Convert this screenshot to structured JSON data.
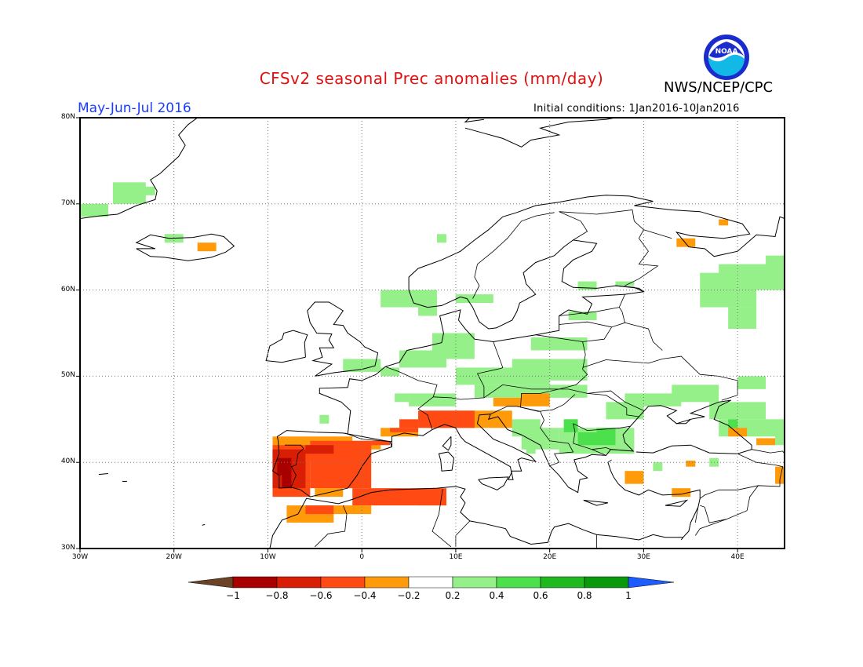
{
  "header": {
    "title": "CFSv2 seasonal Prec anomalies (mm/day)",
    "agency": "NWS/NCEP/CPC",
    "logo_icon": "noaa-logo",
    "logo_text": "NOAA"
  },
  "subheader": {
    "period": "May-Jun-Jul 2016",
    "initial_conditions": "Initial conditions: 1Jan2016-10Jan2016"
  },
  "map": {
    "lon_range": [
      -30,
      45
    ],
    "lat_range": [
      30,
      80
    ],
    "lat_labels": [
      "80N",
      "70N",
      "60N",
      "50N",
      "40N",
      "30N"
    ],
    "lon_labels": [
      "30W",
      "20W",
      "10W",
      "0",
      "10E",
      "20E",
      "30E",
      "40E"
    ],
    "gridlines": true
  },
  "colorbar": {
    "ticks": [
      "-1",
      "-0.8",
      "-0.6",
      "-0.4",
      "-0.2",
      "0.2",
      "0.4",
      "0.6",
      "0.8",
      "1"
    ],
    "colors": [
      "#6b4226",
      "#a80000",
      "#d81e05",
      "#ff4a14",
      "#ff9a0a",
      "#ffffff",
      "#96f08a",
      "#4ce04c",
      "#1fb81f",
      "#0a990a",
      "#1e5cff"
    ]
  },
  "anomaly_regions": [
    {
      "class": "0.2 to 0.4",
      "color": "#96f08a",
      "area": "Greenland east coast"
    },
    {
      "class": "0.2 to 0.4",
      "color": "#96f08a",
      "area": "Iceland"
    },
    {
      "class": "0.2 to 0.4",
      "color": "#96f08a",
      "area": "Scandinavia"
    },
    {
      "class": "0.2 to 0.4",
      "color": "#96f08a",
      "area": "Western Russia"
    },
    {
      "class": "0.2 to 0.4",
      "color": "#96f08a",
      "area": "Central Europe"
    },
    {
      "class": "0.2 to 0.4",
      "color": "#96f08a",
      "area": "Eastern Europe / Black Sea"
    },
    {
      "class": "0.4 to 0.6",
      "color": "#4ce04c",
      "area": "Balkans"
    },
    {
      "class": "-0.4 to -0.2",
      "color": "#ff9a0a",
      "area": "Iberian Peninsula / Alps / Turkey"
    },
    {
      "class": "-0.6 to -0.4",
      "color": "#ff4a14",
      "area": "Iberian Peninsula / North Africa / N. Italy"
    },
    {
      "class": "-0.8 to -0.6",
      "color": "#d81e05",
      "area": "Portugal / Spain"
    },
    {
      "class": "-1 to -0.8",
      "color": "#a80000",
      "area": "Portugal"
    }
  ]
}
